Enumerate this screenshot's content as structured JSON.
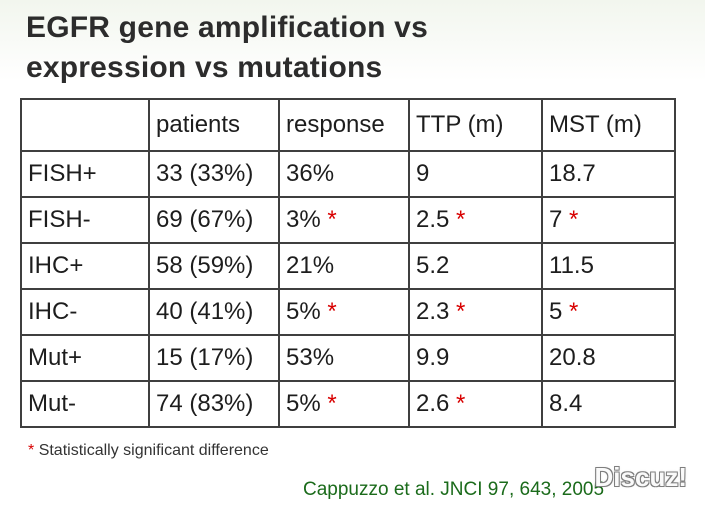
{
  "title": {
    "line1": "EGFR gene amplification vs",
    "line2": "expression vs mutations"
  },
  "table": {
    "headers": [
      "",
      "patients",
      "response",
      "TTP (m)",
      "MST (m)"
    ],
    "rows": [
      {
        "label": "FISH+",
        "patients": "33 (33%)",
        "response": "36%",
        "ttp": "9",
        "mst": "18.7"
      },
      {
        "label": "FISH-",
        "patients": "69 (67%)",
        "response": "3%",
        "response_sig": "*",
        "ttp": "2.5",
        "ttp_sig": "*",
        "mst": "7",
        "mst_sig": "*"
      },
      {
        "label": "IHC+",
        "patients": "58 (59%)",
        "response": "21%",
        "ttp": "5.2",
        "mst": "11.5"
      },
      {
        "label": "IHC-",
        "patients": "40 (41%)",
        "response": "5%",
        "response_sig": "*",
        "ttp": "2.3",
        "ttp_sig": "*",
        "mst": "5",
        "mst_sig": "*"
      },
      {
        "label": "Mut+",
        "patients": "15 (17%)",
        "response": "53%",
        "ttp": "9.9",
        "mst": "20.8"
      },
      {
        "label": "Mut-",
        "patients": "74 (83%)",
        "response": "5%",
        "response_sig": "*",
        "ttp": "2.6",
        "ttp_sig": "*",
        "mst": "8.4"
      }
    ]
  },
  "footnote": {
    "star": "*",
    "text": "Statistically significant difference"
  },
  "citation": {
    "text": "Cappuzzo et al. JNCI 97, 643, 2005"
  },
  "watermark": {
    "text": "Discuz!"
  },
  "colors": {
    "significance": "#d80000",
    "citation": "#1b6b1b",
    "border": "#3f3f3f"
  }
}
